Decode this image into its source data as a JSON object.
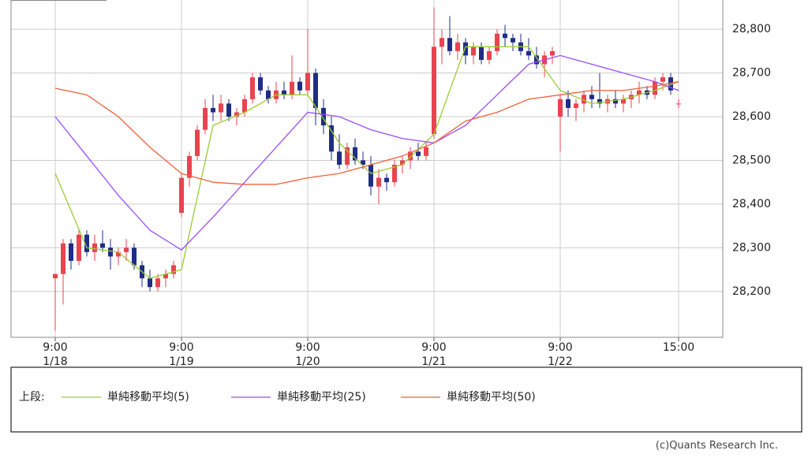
{
  "chart_data": {
    "type": "candlestick",
    "up_color": "#e8434f",
    "down_color": "#1f2d86",
    "open": [
      28230,
      28240,
      28310,
      28270,
      28330,
      28290,
      28310,
      28300,
      28280,
      28290,
      28300,
      28260,
      28230,
      28210,
      28230,
      28240,
      28380,
      28460,
      28510,
      28570,
      28620,
      28610,
      28630,
      28600,
      28610,
      28640,
      28690,
      28660,
      28640,
      28660,
      28650,
      28680,
      28660,
      28700,
      28620,
      28580,
      28520,
      28490,
      28530,
      28500,
      28490,
      28440,
      28460,
      28450,
      28490,
      28500,
      28520,
      28510,
      28560,
      28760,
      28780,
      28750,
      28770,
      28740,
      28760,
      28730,
      28750,
      28790,
      28780,
      28770,
      28750,
      28740,
      28720,
      28740,
      28600,
      28640,
      28620,
      28630,
      28650,
      28640,
      28630,
      28640,
      28630,
      28640,
      28650,
      28660,
      28650,
      28680,
      28690,
      28630
    ],
    "high": [
      28240,
      28320,
      28320,
      28340,
      28340,
      28330,
      28340,
      28320,
      28300,
      28320,
      28310,
      28270,
      28250,
      28240,
      28250,
      28270,
      28470,
      28520,
      28580,
      28640,
      28650,
      28650,
      28640,
      28620,
      28650,
      28700,
      28700,
      28670,
      28680,
      28680,
      28740,
      28690,
      28800,
      28710,
      28640,
      28600,
      28560,
      28540,
      28550,
      28520,
      28510,
      28480,
      28470,
      28500,
      28510,
      28530,
      28540,
      28540,
      28850,
      28800,
      28830,
      28790,
      28780,
      28770,
      28770,
      28760,
      28800,
      28810,
      28790,
      28790,
      28780,
      28760,
      28750,
      28760,
      28650,
      28660,
      28640,
      28660,
      28670,
      28700,
      28650,
      28660,
      28650,
      28660,
      28680,
      28670,
      28690,
      28700,
      28700,
      28640
    ],
    "low": [
      28110,
      28170,
      28250,
      28260,
      28280,
      28270,
      28290,
      28250,
      28260,
      28270,
      28250,
      28210,
      28200,
      28200,
      28210,
      28230,
      28370,
      28440,
      28500,
      28560,
      28590,
      28590,
      28590,
      28580,
      28600,
      28630,
      28650,
      28630,
      28630,
      28640,
      28640,
      28650,
      28650,
      28580,
      28560,
      28500,
      28480,
      28480,
      28490,
      28480,
      28420,
      28400,
      28430,
      28440,
      28470,
      28480,
      28500,
      28500,
      28550,
      28720,
      28740,
      28730,
      28720,
      28720,
      28720,
      28720,
      28740,
      28760,
      28750,
      28740,
      28730,
      28710,
      28690,
      28720,
      28520,
      28600,
      28590,
      28610,
      28620,
      28620,
      28610,
      28620,
      28610,
      28620,
      28630,
      28640,
      28640,
      28660,
      28650,
      28620
    ],
    "close": [
      28240,
      28310,
      28270,
      28330,
      28290,
      28310,
      28300,
      28280,
      28290,
      28300,
      28260,
      28230,
      28210,
      28230,
      28240,
      28260,
      28460,
      28510,
      28570,
      28620,
      28610,
      28630,
      28600,
      28610,
      28640,
      28690,
      28660,
      28640,
      28660,
      28650,
      28680,
      28660,
      28700,
      28620,
      28580,
      28520,
      28490,
      28530,
      28500,
      28490,
      28440,
      28460,
      28450,
      28490,
      28500,
      28520,
      28510,
      28530,
      28760,
      28780,
      28750,
      28770,
      28740,
      28760,
      28730,
      28750,
      28790,
      28780,
      28770,
      28750,
      28740,
      28720,
      28740,
      28750,
      28640,
      28620,
      28630,
      28650,
      28640,
      28630,
      28640,
      28630,
      28640,
      28650,
      28660,
      28650,
      28680,
      28690,
      28660,
      28630
    ],
    "series": [
      {
        "name": "単純移動平均(5)",
        "color": "#9acd32",
        "x": [
          0,
          4,
          8,
          12,
          16,
          20,
          24,
          28,
          32,
          36,
          40,
          44,
          48,
          52,
          56,
          60,
          64,
          68,
          72,
          76,
          79
        ],
        "values": [
          28470,
          28300,
          28290,
          28230,
          28250,
          28580,
          28610,
          28650,
          28650,
          28540,
          28470,
          28490,
          28560,
          28760,
          28760,
          28760,
          28660,
          28630,
          28640,
          28660,
          28680
        ]
      },
      {
        "name": "単純移動平均(25)",
        "color": "#9b4dff",
        "x": [
          0,
          4,
          8,
          12,
          16,
          20,
          24,
          28,
          32,
          36,
          40,
          44,
          48,
          52,
          56,
          60,
          64,
          68,
          72,
          76,
          79
        ],
        "values": [
          28600,
          28510,
          28420,
          28340,
          28295,
          28370,
          28450,
          28530,
          28610,
          28600,
          28570,
          28550,
          28540,
          28580,
          28650,
          28720,
          28740,
          28720,
          28700,
          28680,
          28660
        ]
      },
      {
        "name": "単純移動平均(50)",
        "color": "#f0603a",
        "x": [
          0,
          4,
          8,
          12,
          16,
          20,
          24,
          28,
          32,
          36,
          40,
          44,
          48,
          52,
          56,
          60,
          64,
          68,
          72,
          76,
          79
        ],
        "values": [
          28665,
          28650,
          28600,
          28530,
          28470,
          28450,
          28445,
          28445,
          28460,
          28470,
          28490,
          28510,
          28540,
          28590,
          28610,
          28640,
          28650,
          28660,
          28660,
          28670,
          28680
        ]
      }
    ],
    "xlim": [
      -5.6,
      84.6
    ],
    "xticks": [
      {
        "value": 0,
        "label": "9:00\n1/18"
      },
      {
        "value": 16,
        "label": "9:00\n1/19"
      },
      {
        "value": 32,
        "label": "9:00\n1/20"
      },
      {
        "value": 48,
        "label": "9:00\n1/21"
      },
      {
        "value": 64,
        "label": "9:00\n1/22"
      },
      {
        "value": 79,
        "label": "15:00"
      }
    ],
    "ylim": [
      28095,
      28867
    ],
    "yticks": [
      {
        "value": 28200,
        "label": "28,200"
      },
      {
        "value": 28300,
        "label": "28,300"
      },
      {
        "value": 28400,
        "label": "28,400"
      },
      {
        "value": 28500,
        "label": "28,500"
      },
      {
        "value": 28600,
        "label": "28,600"
      },
      {
        "value": 28700,
        "label": "28,700"
      },
      {
        "value": 28800,
        "label": "28,800"
      }
    ],
    "grid": true,
    "legend_title": "上段:",
    "credit": "(c)Quants Research Inc."
  }
}
